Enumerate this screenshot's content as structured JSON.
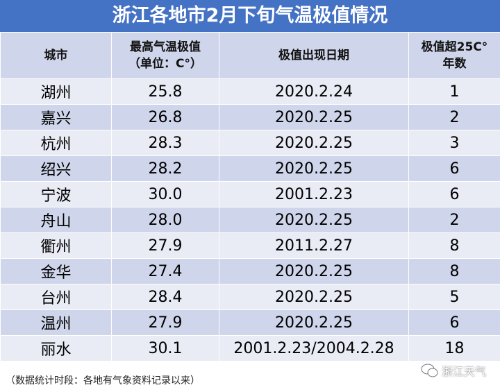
{
  "header": {
    "title": "浙江各地市2月下旬气温极值情况"
  },
  "table": {
    "columns": [
      "城市",
      "最高气温极值\n（单位：C°）",
      "极值出现日期",
      "极值超25C°\n年数"
    ],
    "rows": [
      [
        "湖州",
        "25.8",
        "2020.2.24",
        "1"
      ],
      [
        "嘉兴",
        "26.8",
        "2020.2.25",
        "2"
      ],
      [
        "杭州",
        "28.3",
        "2020.2.25",
        "3"
      ],
      [
        "绍兴",
        "28.2",
        "2020.2.25",
        "6"
      ],
      [
        "宁波",
        "30.0",
        "2001.2.23",
        "6"
      ],
      [
        "舟山",
        "28.0",
        "2020.2.25",
        "2"
      ],
      [
        "衢州",
        "27.9",
        "2011.2.27",
        "8"
      ],
      [
        "金华",
        "27.4",
        "2020.2.25",
        "8"
      ],
      [
        "台州",
        "28.4",
        "2020.2.25",
        "5"
      ],
      [
        "温州",
        "27.9",
        "2020.2.25",
        "6"
      ],
      [
        "丽水",
        "30.1",
        "2001.2.23/2004.2.28",
        "18"
      ]
    ]
  },
  "footer": {
    "note": "（数据统计时段：各地有气象资料记录以来）"
  },
  "watermark": {
    "text": "浙江天气"
  }
}
